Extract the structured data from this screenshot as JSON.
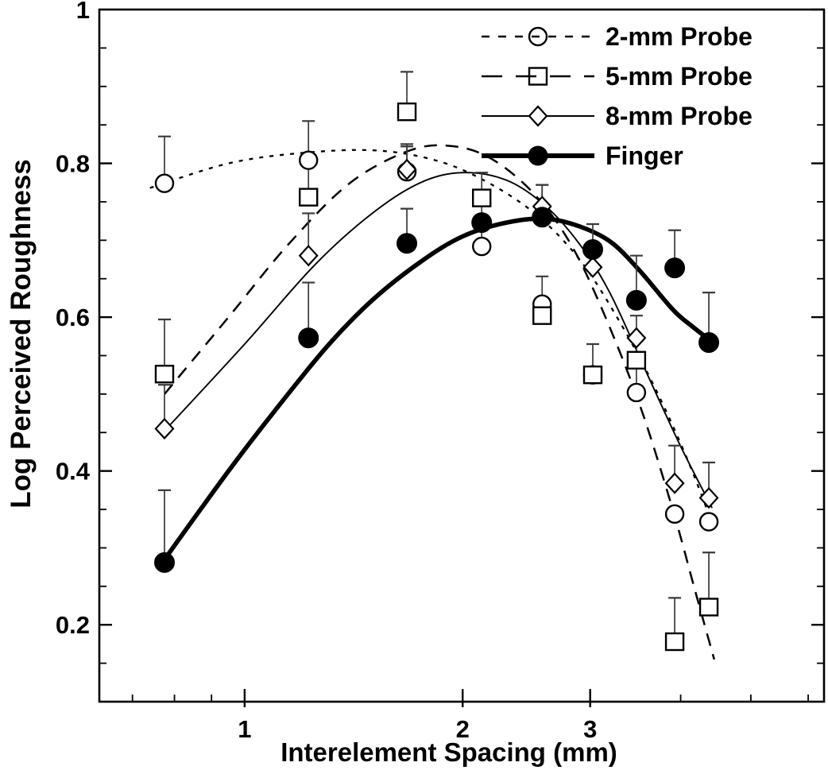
{
  "figure": {
    "background": "#ffffff",
    "ink": "#000000",
    "error_bar_color": "#3a3a3a"
  },
  "chart_data": {
    "type": "scatter",
    "title": "",
    "xlabel": "Interelement Spacing (mm)",
    "ylabel": "Log Perceived Roughness",
    "x_scale": "log10",
    "xlim": [
      0.63,
      6.31
    ],
    "ylim": [
      0.1,
      1.0
    ],
    "grid": false,
    "legend_position": "top-right-inside",
    "x_ticks_major": [
      1,
      2,
      3
    ],
    "x_tick_labels": [
      "1",
      "2",
      "3"
    ],
    "x_ticks_minor": [
      0.7,
      0.8,
      0.9,
      4,
      5,
      6
    ],
    "y_ticks_major": [
      1.0,
      0.8,
      0.6,
      0.4,
      0.2
    ],
    "y_tick_labels": [
      "1",
      "0.8",
      "0.6",
      "0.4",
      "0.2"
    ],
    "y_ticks_minor": [
      0.95,
      0.9,
      0.85,
      0.75,
      0.7,
      0.65,
      0.55,
      0.5,
      0.45,
      0.35,
      0.3,
      0.25,
      0.15
    ],
    "x_values": [
      0.775,
      1.225,
      1.675,
      2.125,
      2.575,
      3.025,
      3.475,
      3.925,
      4.375
    ],
    "series": [
      {
        "name": "2-mm Probe",
        "marker": "open-circle",
        "line": "short-dash",
        "values": [
          0.774,
          0.804,
          0.789,
          0.692,
          0.617,
          0.525,
          0.502,
          0.344,
          0.334
        ],
        "error_top": [
          0.835,
          0.855,
          0.822,
          0.72,
          0.653,
          null,
          0.54,
          null,
          null
        ],
        "curve": [
          [
            0.74,
            0.768
          ],
          [
            0.95,
            0.8
          ],
          [
            1.2,
            0.8135
          ],
          [
            1.5,
            0.817
          ],
          [
            1.8,
            0.806
          ],
          [
            2.1,
            0.782
          ],
          [
            2.5,
            0.737
          ],
          [
            2.9,
            0.675
          ],
          [
            3.3,
            0.593
          ],
          [
            3.7,
            0.505
          ],
          [
            4.1,
            0.412
          ],
          [
            4.45,
            0.325
          ]
        ]
      },
      {
        "name": "5-mm Probe",
        "marker": "open-square",
        "line": "long-dash",
        "values": [
          0.526,
          0.756,
          0.867,
          0.755,
          0.602,
          0.525,
          0.544,
          0.178,
          0.223
        ],
        "error_top": [
          0.597,
          0.8,
          0.919,
          0.788,
          null,
          0.565,
          0.575,
          0.235,
          0.294
        ],
        "curve": [
          [
            0.775,
            0.5
          ],
          [
            0.95,
            0.6
          ],
          [
            1.15,
            0.695
          ],
          [
            1.4,
            0.775
          ],
          [
            1.7,
            0.8175
          ],
          [
            1.95,
            0.822
          ],
          [
            2.2,
            0.805
          ],
          [
            2.5,
            0.762
          ],
          [
            2.8,
            0.7
          ],
          [
            3.1,
            0.615
          ],
          [
            3.5,
            0.49
          ],
          [
            3.9,
            0.35
          ],
          [
            4.2,
            0.24
          ],
          [
            4.45,
            0.155
          ]
        ]
      },
      {
        "name": "8-mm Probe",
        "marker": "open-diamond",
        "line": "solid-thin",
        "values": [
          0.455,
          0.68,
          0.792,
          null,
          0.744,
          0.665,
          0.573,
          0.384,
          0.365
        ],
        "error_top": [
          0.512,
          0.735,
          0.825,
          null,
          0.772,
          null,
          0.602,
          0.433,
          0.411
        ],
        "curve": [
          [
            0.775,
            0.452
          ],
          [
            1.0,
            0.565
          ],
          [
            1.25,
            0.668
          ],
          [
            1.5,
            0.735
          ],
          [
            1.75,
            0.775
          ],
          [
            2.0,
            0.788
          ],
          [
            2.3,
            0.778
          ],
          [
            2.6,
            0.745
          ],
          [
            2.9,
            0.695
          ],
          [
            3.2,
            0.63
          ],
          [
            3.6,
            0.525
          ],
          [
            4.0,
            0.432
          ],
          [
            4.42,
            0.352
          ]
        ]
      },
      {
        "name": "Finger",
        "marker": "filled-circle",
        "line": "solid-thick",
        "values": [
          0.281,
          0.573,
          0.696,
          0.723,
          0.73,
          0.688,
          0.622,
          0.664,
          0.567
        ],
        "error_top": [
          0.375,
          0.645,
          0.741,
          0.76,
          0.772,
          0.721,
          0.68,
          0.713,
          0.632
        ],
        "curve": [
          [
            0.775,
            0.285
          ],
          [
            0.95,
            0.4
          ],
          [
            1.1,
            0.478
          ],
          [
            1.3,
            0.562
          ],
          [
            1.5,
            0.622
          ],
          [
            1.75,
            0.672
          ],
          [
            2.0,
            0.705
          ],
          [
            2.3,
            0.723
          ],
          [
            2.6,
            0.728
          ],
          [
            2.9,
            0.718
          ],
          [
            3.2,
            0.698
          ],
          [
            3.5,
            0.662
          ],
          [
            3.9,
            0.61
          ],
          [
            4.15,
            0.588
          ],
          [
            4.42,
            0.568
          ]
        ]
      }
    ]
  },
  "legend": {
    "items": [
      {
        "label": "2-mm Probe"
      },
      {
        "label": "5-mm Probe"
      },
      {
        "label": "8-mm Probe"
      },
      {
        "label": "Finger"
      }
    ]
  }
}
